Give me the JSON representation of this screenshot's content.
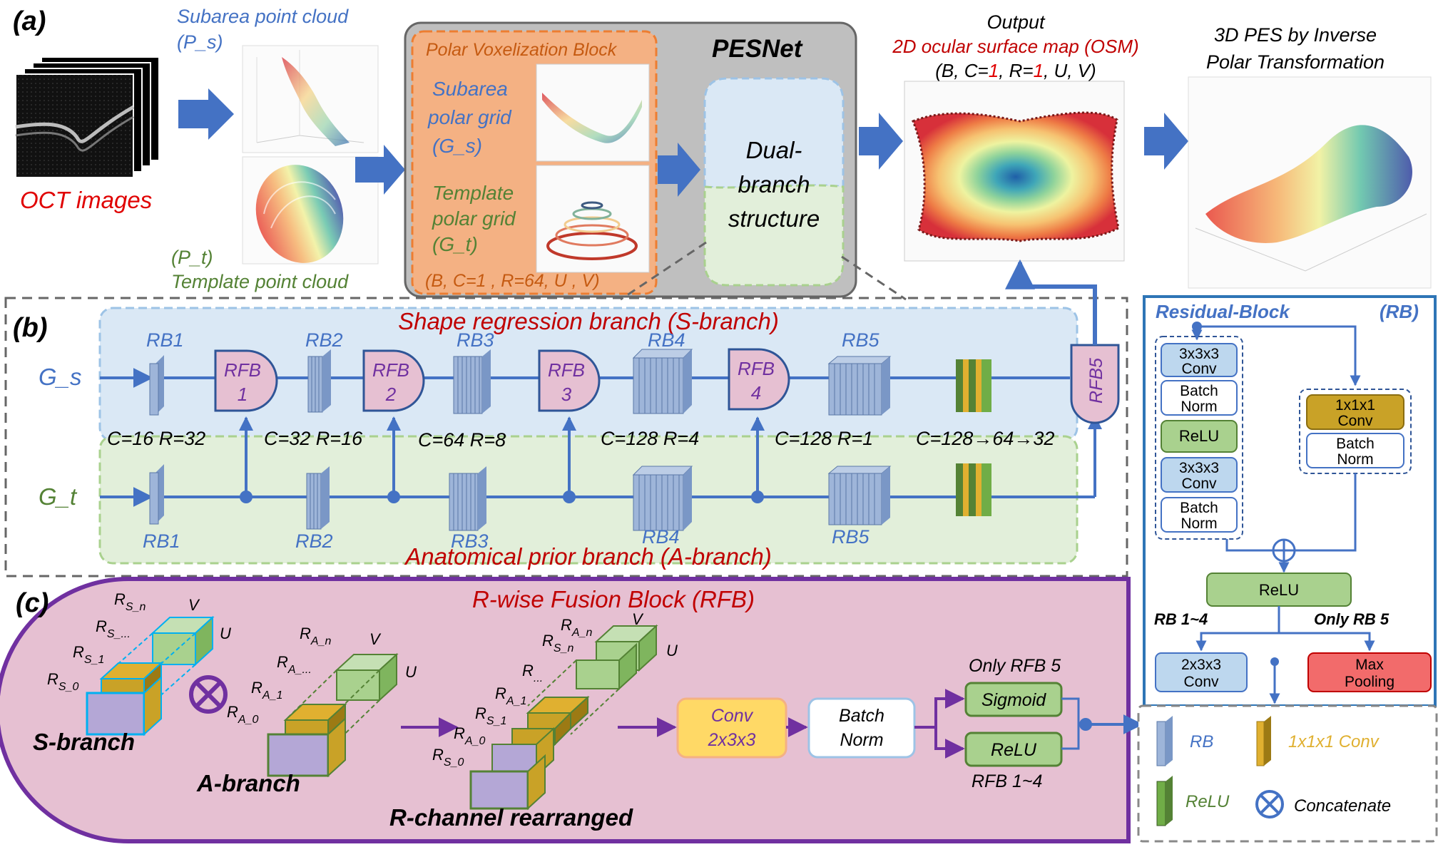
{
  "panel_a": {
    "label": "(a)",
    "oct_caption": "OCT images",
    "subarea_cloud_line1": "Subarea point  cloud",
    "subarea_cloud_line2": "(P_s)",
    "template_cloud_line1": "(P_t)",
    "template_cloud_line2": "Template point cloud",
    "polar_block_title": "Polar Voxelization Block",
    "subarea_grid": [
      "Subarea",
      "polar grid",
      "(G_s)"
    ],
    "template_grid": [
      "Template",
      "polar grid",
      "(G_t)"
    ],
    "polar_dims": "(B,  C=1 , R=64,  U , V)",
    "pesnet_title": "PESNet",
    "dual_branch": [
      "Dual-",
      "branch",
      "structure"
    ],
    "output_title": "Output",
    "output_subtitle": "2D ocular surface map (OSM)",
    "output_dims_pre": "(B, C=",
    "output_dims_c": "1",
    "output_dims_mid": ", R=",
    "output_dims_r": "1",
    "output_dims_post": ", U, V)",
    "pes_title_line1": "3D PES by Inverse",
    "pes_title_line2": "Polar Transformation"
  },
  "panel_b": {
    "label": "(b)",
    "s_branch_title": "Shape regression branch (S-branch)",
    "a_branch_title": "Anatomical prior branch (A-branch)",
    "gs_label": "G_s",
    "gt_label": "G_t",
    "rb_top": [
      "RB1",
      "RB2",
      "RB3",
      "RB4",
      "RB5"
    ],
    "rb_bottom": [
      "RB1",
      "RB2",
      "RB3",
      "RB4",
      "RB5"
    ],
    "rfb": [
      [
        "RFB",
        "1"
      ],
      [
        "RFB",
        "2"
      ],
      [
        "RFB",
        "3"
      ],
      [
        "RFB",
        "4"
      ]
    ],
    "rfb5": "RFB5",
    "dims": [
      "C=16 R=32",
      "C=32 R=16",
      "C=64 R=8",
      "C=128 R=4",
      "C=128 R=1",
      "C=128→64→32"
    ]
  },
  "residual_block": {
    "title": "Residual-Block",
    "abbr": "(RB)",
    "conv1": [
      "3x3x3",
      "Conv"
    ],
    "bn1": [
      "Batch",
      "Norm"
    ],
    "relu1": "ReLU",
    "conv2": [
      "3x3x3",
      "Conv"
    ],
    "bn2": [
      "Batch",
      "Norm"
    ],
    "skip_conv": [
      "1x1x1",
      "Conv"
    ],
    "skip_bn": [
      "Batch",
      "Norm"
    ],
    "relu2": "ReLU",
    "rb14": "RB 1~4",
    "rb5": "Only RB 5",
    "conv_out": [
      "2x3x3",
      "Conv"
    ],
    "maxpool": [
      "Max",
      "Pooling"
    ]
  },
  "panel_c": {
    "label": "(c)",
    "title": "R-wise Fusion Block (RFB)",
    "s_labels": [
      "R",
      "S_n",
      "R",
      "S_...",
      "R",
      "S_1",
      "R",
      "S_0"
    ],
    "s_dim_v": "V",
    "s_dim_u": "U",
    "s_branch": "S-branch",
    "a_labels": [
      "R",
      "A_n",
      "R",
      "A_...",
      "R",
      "A_1",
      "R",
      "A_0"
    ],
    "a_dim_v": "V",
    "a_dim_u": "U",
    "a_branch": "A-branch",
    "r_labels": [
      "R",
      "A_n",
      "R",
      "S_n",
      "R",
      "...",
      "R",
      "A_1",
      "R",
      "S_1",
      "R",
      "A_0",
      "R",
      "S_0"
    ],
    "r_dim_v": "V",
    "r_dim_u": "U",
    "r_caption": "R-channel rearranged",
    "conv": [
      "Conv",
      "2x3x3"
    ],
    "bn": [
      "Batch",
      "Norm"
    ],
    "only_rfb5": "Only RFB 5",
    "sigmoid": "Sigmoid",
    "relu": "ReLU",
    "rfb14": "RFB 1~4"
  },
  "legend": {
    "rb": "RB",
    "conv": "1x1x1 Conv",
    "relu": "ReLU",
    "concat": "Concatenate"
  },
  "colors": {
    "blue": "#4472C4",
    "red": "#C00000",
    "green": "#548235",
    "orange": "#F4B183",
    "purple": "#7030A0",
    "pink": "#E6C0D2"
  }
}
